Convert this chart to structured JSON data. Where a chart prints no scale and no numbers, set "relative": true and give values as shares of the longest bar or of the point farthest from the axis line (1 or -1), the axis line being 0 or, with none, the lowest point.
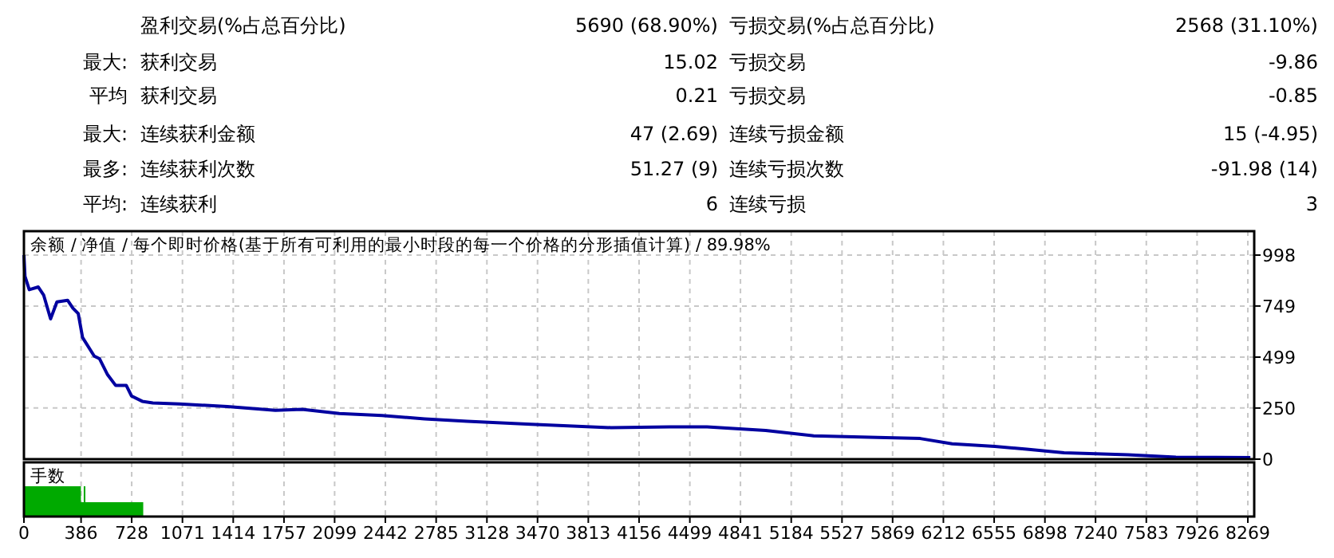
{
  "chart_data": [
    {
      "type": "other",
      "annotations": [
        "盈利交易(%占总百分比)",
        "5690 (68.90%)",
        "亏损交易(%占总百分比)",
        "2568 (31.10%)",
        "最大:",
        "获利交易",
        "15.02",
        "亏损交易",
        "-9.86",
        "平均",
        "获利交易",
        "0.21",
        "亏损交易",
        "-0.85",
        "最大:",
        "连续获利金额",
        "47 (2.69)",
        "连续亏损金额",
        "15 (-4.95)",
        "最多:",
        "连续获利次数",
        "51.27 (9)",
        "连续亏损次数",
        "-91.98 (14)",
        "平均:",
        "连续获利",
        "6",
        "连续亏损",
        "3"
      ]
    },
    {
      "type": "line",
      "title": "余额 / 净值 / 每个即时价格(基于所有可利用的最小时段的每一个价格的分形插值计算) / 89.98%",
      "grid": true,
      "tick_labels": "y",
      "xlim": [
        0,
        8312
      ],
      "ylim": [
        0,
        1115
      ],
      "xticks": [
        0,
        386,
        728,
        1071,
        1414,
        1757,
        2099,
        2442,
        2785,
        3128,
        3470,
        3813,
        4156,
        4499,
        4841,
        5184,
        5527,
        5869,
        6212,
        6555,
        6898,
        7240,
        7583,
        7926,
        8269
      ],
      "yticks": [
        0,
        250,
        499,
        749,
        998
      ],
      "series": [
        {
          "color": "#0000a0",
          "x": [
            0,
            7,
            36,
            97,
            133,
            180,
            223,
            295,
            331,
            367,
            396,
            475,
            511,
            565,
            619,
            691,
            727,
            799,
            871,
            1051,
            1375,
            1699,
            1879,
            2131,
            2419,
            2707,
            2995,
            3427,
            3967,
            4363,
            4615,
            5011,
            5335,
            5767,
            6055,
            6271,
            6559,
            6775,
            7027,
            7459,
            7783,
            8286
          ],
          "values": [
            998,
            894,
            829,
            842,
            803,
            686,
            769,
            777,
            738,
            712,
            595,
            504,
            491,
            413,
            361,
            361,
            309,
            283,
            275,
            270,
            257,
            239,
            244,
            223,
            213,
            197,
            185,
            171,
            154,
            158,
            158,
            140,
            114,
            106,
            101,
            75,
            62,
            49,
            31,
            21,
            10,
            8
          ]
        }
      ]
    },
    {
      "type": "area",
      "title": "手数",
      "relative": true,
      "grid": "x",
      "tick_labels": "x",
      "xlim": [
        0,
        8312
      ],
      "xticks": [
        0,
        386,
        728,
        1071,
        1414,
        1757,
        2099,
        2442,
        2785,
        3128,
        3470,
        3813,
        4156,
        4499,
        4841,
        5184,
        5527,
        5869,
        6212,
        6555,
        6898,
        7240,
        7583,
        7926,
        8269
      ],
      "series": [
        {
          "color": "#00aa00",
          "x": [
            0,
            385,
            385,
            404,
            404,
            415,
            415,
            806
          ],
          "values": [
            1,
            1,
            0.47,
            0.47,
            1,
            1,
            0.47,
            0.47
          ]
        }
      ]
    }
  ]
}
